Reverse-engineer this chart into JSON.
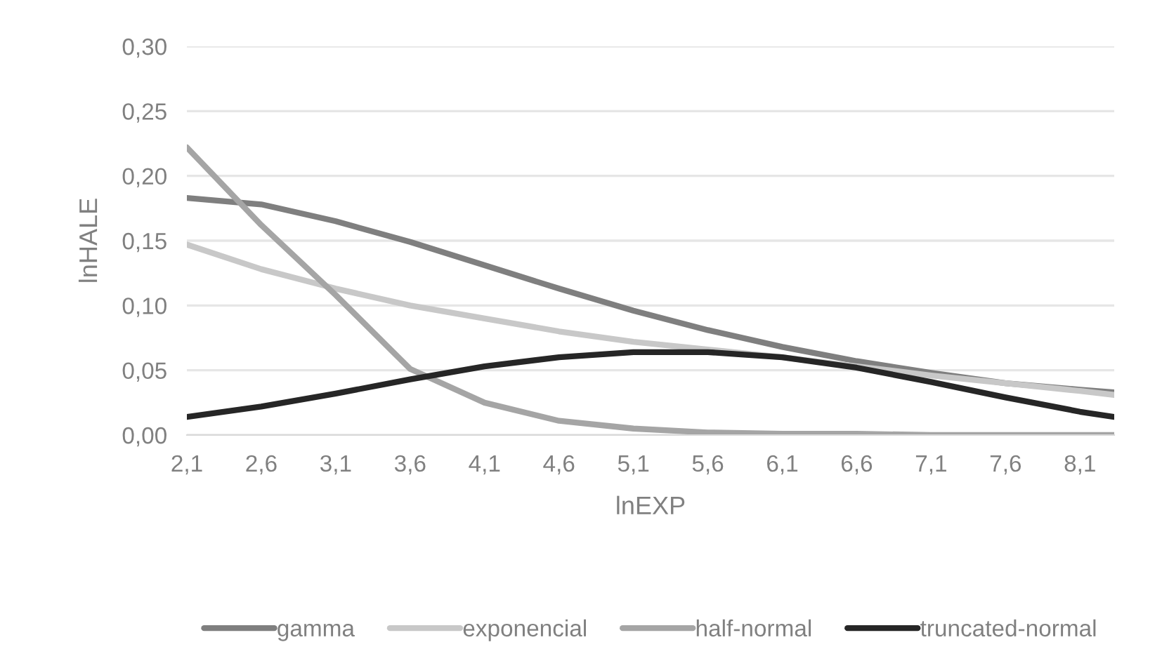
{
  "chart_data": {
    "type": "line",
    "xlabel": "lnEXP",
    "ylabel": "lnHALE",
    "x": [
      2.1,
      2.6,
      3.1,
      3.6,
      4.1,
      4.6,
      5.1,
      5.6,
      6.1,
      6.6,
      7.1,
      7.6,
      8.1,
      8.33
    ],
    "series": [
      {
        "name": "gamma",
        "color": "#7f7f7f",
        "values": [
          0.183,
          0.178,
          0.165,
          0.149,
          0.131,
          0.113,
          0.096,
          0.081,
          0.068,
          0.057,
          0.048,
          0.04,
          0.035,
          0.033
        ]
      },
      {
        "name": "exponencial",
        "color": "#c8c8c8",
        "values": [
          0.147,
          0.128,
          0.113,
          0.1,
          0.09,
          0.08,
          0.072,
          0.066,
          0.06,
          0.053,
          0.046,
          0.04,
          0.034,
          0.031
        ]
      },
      {
        "name": "half-normal",
        "color": "#a5a5a5",
        "values": [
          0.222,
          0.162,
          0.108,
          0.051,
          0.025,
          0.011,
          0.005,
          0.002,
          0.001,
          0.001,
          0.0,
          0.0,
          0.0,
          0.0
        ]
      },
      {
        "name": "truncated-normal",
        "color": "#262626",
        "values": [
          0.014,
          0.022,
          0.032,
          0.043,
          0.053,
          0.06,
          0.064,
          0.064,
          0.06,
          0.052,
          0.041,
          0.029,
          0.018,
          0.014
        ]
      }
    ],
    "xlim": [
      2.1,
      8.33
    ],
    "xticks": [
      {
        "value": 2.1,
        "label": "2,1"
      },
      {
        "value": 2.6,
        "label": "2,6"
      },
      {
        "value": 3.1,
        "label": "3,1"
      },
      {
        "value": 3.6,
        "label": "3,6"
      },
      {
        "value": 4.1,
        "label": "4,1"
      },
      {
        "value": 4.6,
        "label": "4,6"
      },
      {
        "value": 5.1,
        "label": "5,1"
      },
      {
        "value": 5.6,
        "label": "5,6"
      },
      {
        "value": 6.1,
        "label": "6,1"
      },
      {
        "value": 6.6,
        "label": "6,6"
      },
      {
        "value": 7.1,
        "label": "7,1"
      },
      {
        "value": 7.6,
        "label": "7,6"
      },
      {
        "value": 8.1,
        "label": "8,1"
      }
    ],
    "ylim": [
      0,
      0.3
    ],
    "yticks": [
      {
        "value": 0,
        "label": "0,00"
      },
      {
        "value": 0.05,
        "label": "0,05"
      },
      {
        "value": 0.1,
        "label": "0,10"
      },
      {
        "value": 0.15,
        "label": "0,15"
      },
      {
        "value": 0.2,
        "label": "0,20"
      },
      {
        "value": 0.25,
        "label": "0,25"
      },
      {
        "value": 0.3,
        "label": "0,30"
      }
    ],
    "grid": "y",
    "legend": "bottom",
    "marker": "none",
    "line_style": "solid"
  }
}
